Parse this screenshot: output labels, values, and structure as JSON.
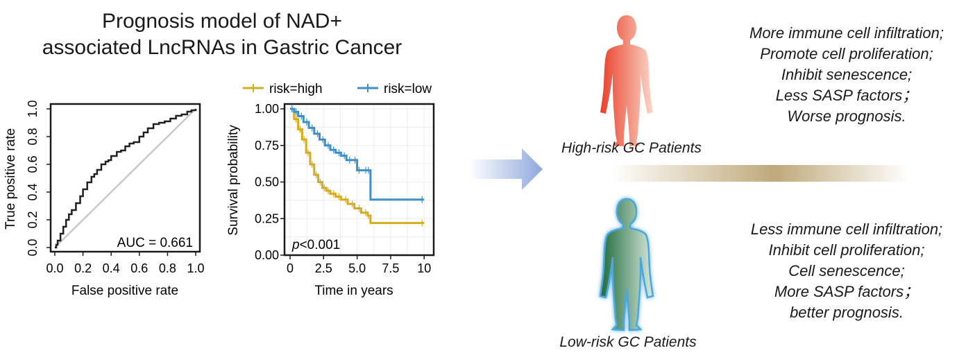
{
  "title": {
    "line1": "Prognosis model of NAD+",
    "line2": "associated LncRNAs in Gastric Cancer"
  },
  "high_risk": {
    "label": "High-risk GC Patients",
    "effects": [
      "More immune cell infiltration;",
      "Promote cell proliferation;",
      "Inhibit senescence;",
      "Less SASP factors；",
      "Worse prognosis."
    ]
  },
  "low_risk": {
    "label": "Low-risk GC Patients",
    "effects": [
      "Less immune cell infiltration;",
      "Inhibit cell proliferation;",
      "Cell senescence;",
      "More SASP factors；",
      "better prognosis."
    ]
  },
  "colors": {
    "high_risk_series": "#d4ac20",
    "low_risk_series": "#3c8fc8",
    "roc_curve": "#231f20",
    "diagonal": "#c8c8c8",
    "arrow": "#8fa8dc",
    "high_figure": "#e8402a",
    "low_figure": "#1f6a3a",
    "low_glow": "#4aa8e0",
    "divider": "#bfa97a"
  },
  "chart_data": [
    {
      "type": "line",
      "subtype": "roc",
      "title": "",
      "xlabel": "False positive rate",
      "ylabel": "True positive rate",
      "xlim": [
        0,
        1
      ],
      "ylim": [
        0,
        1
      ],
      "xticks": [
        "0.0",
        "0.2",
        "0.4",
        "0.6",
        "0.8",
        "1.0"
      ],
      "yticks": [
        "0.0",
        "0.2",
        "0.4",
        "0.6",
        "0.8",
        "1.0"
      ],
      "annotation": "AUC = 0.661",
      "series": [
        {
          "x": [
            0,
            0.01,
            0.02,
            0.04,
            0.06,
            0.08,
            0.1,
            0.12,
            0.15,
            0.18,
            0.2,
            0.23,
            0.26,
            0.28,
            0.3,
            0.33,
            0.36,
            0.38,
            0.4,
            0.44,
            0.47,
            0.5,
            0.53,
            0.56,
            0.6,
            0.63,
            0.66,
            0.7,
            0.74,
            0.78,
            0.82,
            0.86,
            0.9,
            0.94,
            0.97,
            1.0
          ],
          "y": [
            0,
            0.02,
            0.05,
            0.1,
            0.15,
            0.2,
            0.24,
            0.27,
            0.32,
            0.37,
            0.42,
            0.47,
            0.51,
            0.53,
            0.56,
            0.6,
            0.62,
            0.63,
            0.66,
            0.69,
            0.7,
            0.73,
            0.75,
            0.76,
            0.8,
            0.83,
            0.86,
            0.89,
            0.9,
            0.91,
            0.93,
            0.95,
            0.96,
            0.98,
            0.99,
            1.0
          ]
        }
      ],
      "diagonal": true,
      "grid": false
    },
    {
      "type": "line",
      "subtype": "kaplan-meier",
      "title": "",
      "xlabel": "Time in years",
      "ylabel": "Survival probability",
      "xlim": [
        0,
        10.3
      ],
      "ylim": [
        0,
        1
      ],
      "xticks": [
        "0",
        "2.5",
        "5.0",
        "7.5",
        "10"
      ],
      "yticks": [
        "0.00",
        "0.25",
        "0.50",
        "0.75",
        "1.00"
      ],
      "annotation": "p<0.001",
      "annotation_italic_part": "p",
      "legend_position": "top",
      "grid": true,
      "series": [
        {
          "name": "risk=high",
          "x": [
            0,
            0.3,
            0.6,
            0.9,
            1.2,
            1.5,
            1.8,
            2.1,
            2.4,
            2.7,
            3.0,
            3.4,
            3.8,
            4.3,
            4.8,
            5.3,
            5.8,
            6.0,
            10.0
          ],
          "y": [
            1.0,
            0.93,
            0.86,
            0.79,
            0.7,
            0.62,
            0.55,
            0.5,
            0.46,
            0.44,
            0.42,
            0.4,
            0.38,
            0.35,
            0.32,
            0.29,
            0.27,
            0.22,
            0.22
          ]
        },
        {
          "name": "risk=low",
          "x": [
            0,
            0.3,
            0.6,
            1.0,
            1.4,
            1.8,
            2.2,
            2.6,
            3.0,
            3.4,
            3.8,
            4.2,
            4.6,
            5.0,
            5.3,
            5.8,
            6.0,
            10.0
          ],
          "y": [
            1.0,
            0.98,
            0.95,
            0.91,
            0.87,
            0.83,
            0.79,
            0.75,
            0.72,
            0.7,
            0.68,
            0.65,
            0.65,
            0.58,
            0.58,
            0.58,
            0.38,
            0.38
          ]
        }
      ]
    }
  ]
}
